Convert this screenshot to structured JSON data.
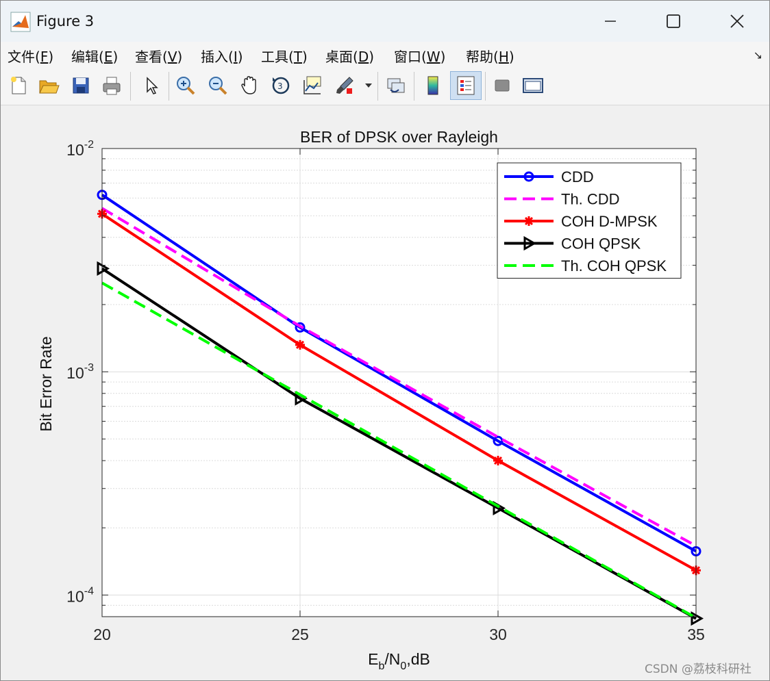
{
  "window": {
    "title": "Figure 3"
  },
  "menu": [
    {
      "label": "文件(",
      "key": "F",
      "suffix": ")"
    },
    {
      "label": "编辑(",
      "key": "E",
      "suffix": ")"
    },
    {
      "label": "查看(",
      "key": "V",
      "suffix": ")"
    },
    {
      "label": "插入(",
      "key": "I",
      "suffix": ")"
    },
    {
      "label": "工具(",
      "key": "T",
      "suffix": ")"
    },
    {
      "label": "桌面(",
      "key": "D",
      "suffix": ")"
    },
    {
      "label": "窗口(",
      "key": "W",
      "suffix": ")"
    },
    {
      "label": "帮助(",
      "key": "H",
      "suffix": ")"
    }
  ],
  "toolbar": [
    "new-file-icon",
    "open-folder-icon",
    "save-icon",
    "print-icon",
    "pointer-icon",
    "zoom-in-icon",
    "zoom-out-icon",
    "pan-hand-icon",
    "rotate-3d-icon",
    "data-cursor-icon",
    "brush-icon",
    "brush-dropdown-icon",
    "link-plot-icon",
    "colorbar-icon",
    "legend-icon",
    "hide-tools-icon",
    "dock-icon"
  ],
  "chart_data": {
    "type": "line",
    "title": "BER of DPSK over Rayleigh",
    "ylabel": "Bit Error Rate",
    "xlabel_parts": {
      "E": "E",
      "b": "b",
      "slash": "/N",
      "zero": "0",
      "unit": ",dB"
    },
    "x": [
      20,
      25,
      30,
      35
    ],
    "xlim": [
      20,
      35
    ],
    "ylim": [
      8e-05,
      0.01
    ],
    "yscale": "log",
    "xticks": [
      "20",
      "25",
      "30",
      "35"
    ],
    "yticks": [
      {
        "base": "10",
        "exp": "-2",
        "value": 0.01
      },
      {
        "base": "10",
        "exp": "-3",
        "value": 0.001
      },
      {
        "base": "10",
        "exp": "-4",
        "value": 0.0001
      }
    ],
    "grid": true,
    "legend_position": "top-right",
    "series": [
      {
        "name": "CDD",
        "values": [
          0.0062,
          0.00158,
          0.00049,
          0.000157
        ],
        "color": "#0000ff",
        "dash": "",
        "marker": "circle",
        "width": 4
      },
      {
        "name": "Th. CDD",
        "values": [
          0.0054,
          0.0016,
          0.00051,
          0.000166
        ],
        "color": "#ff00ff",
        "dash": "18,9",
        "marker": "none",
        "width": 4
      },
      {
        "name": "COH D-MPSK",
        "values": [
          0.0051,
          0.00132,
          0.0004,
          0.000129
        ],
        "color": "#ff0000",
        "dash": "",
        "marker": "star",
        "width": 4
      },
      {
        "name": "COH QPSK",
        "values": [
          0.0029,
          0.00076,
          0.000245,
          7.85e-05
        ],
        "color": "#000000",
        "dash": "",
        "marker": "triangle-right",
        "width": 4
      },
      {
        "name": "Th. COH QPSK",
        "values": [
          0.0025,
          0.00079,
          0.00025,
          7.9e-05
        ],
        "color": "#00ff00",
        "dash": "18,9",
        "marker": "none",
        "width": 4
      }
    ]
  },
  "watermark": "CSDN @荔枝科研社"
}
